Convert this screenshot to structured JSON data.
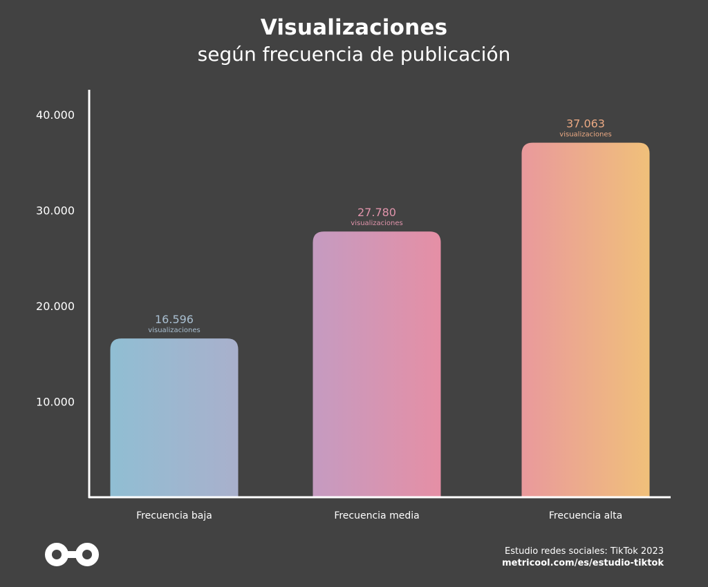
{
  "title": "Visualizaciones",
  "subtitle": "según frecuencia de publicación",
  "footer": {
    "source": "Estudio redes sociales: TikTok 2023",
    "url": "metricool.com/es/estudio-tiktok"
  },
  "colors": {
    "background": "#424242",
    "axis": "#ffffff",
    "label_baja": "#a9bfd1",
    "label_media": "#e094ab",
    "label_alta": "#eba983"
  },
  "chart_data": {
    "type": "bar",
    "title": "Visualizaciones",
    "subtitle": "según frecuencia de publicación",
    "categories": [
      "Frecuencia baja",
      "Frecuencia media",
      "Frecuencia alta"
    ],
    "values": [
      16596,
      27780,
      37063
    ],
    "value_labels": [
      "16.596",
      "27.780",
      "37.063"
    ],
    "value_unit": "visualizaciones",
    "yticks": [
      "10.000",
      "20.000",
      "30.000",
      "40.000"
    ],
    "ytick_values": [
      10000,
      20000,
      30000,
      40000
    ],
    "ylim": [
      0,
      40000
    ],
    "grid": false,
    "bar_gradients": [
      [
        "#90bed3",
        "#a9b0cc"
      ],
      [
        "#c59bc1",
        "#e58fa5"
      ],
      [
        "#e9999c",
        "#f0c07a"
      ]
    ]
  }
}
